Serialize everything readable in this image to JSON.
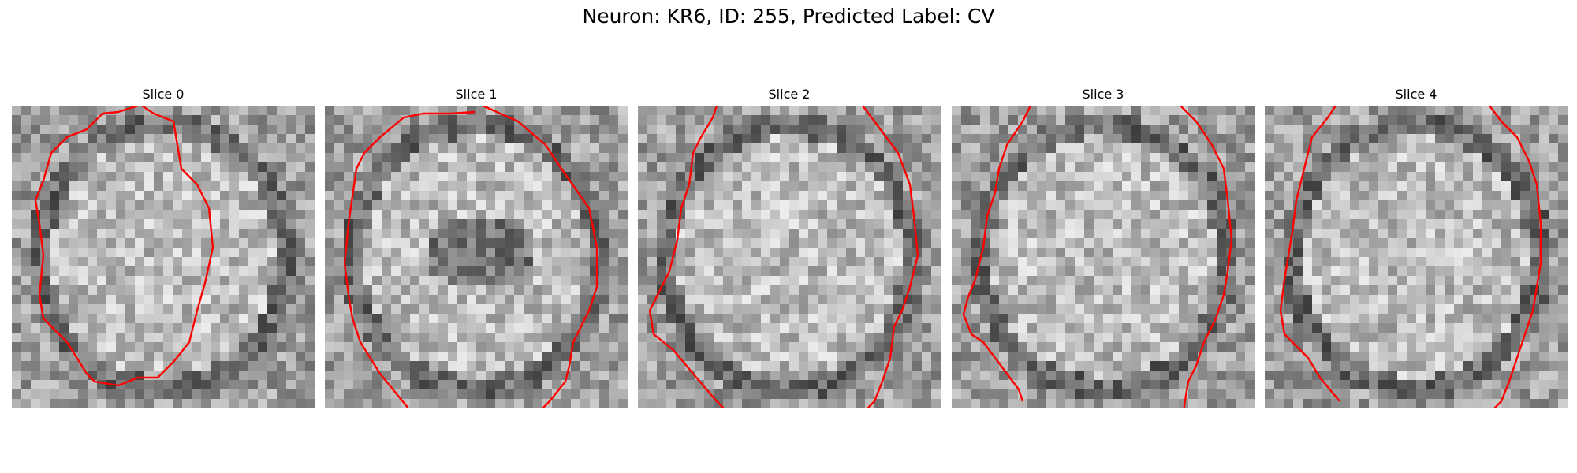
{
  "figure": {
    "title": "Neuron: KR6, ID: 255, Predicted Label: CV"
  },
  "panels": [
    {
      "title": "Slice 0"
    },
    {
      "title": "Slice 1"
    },
    {
      "title": "Slice 2"
    },
    {
      "title": "Slice 3"
    },
    {
      "title": "Slice 4"
    }
  ],
  "colors": {
    "contour": "#ff0000"
  }
}
